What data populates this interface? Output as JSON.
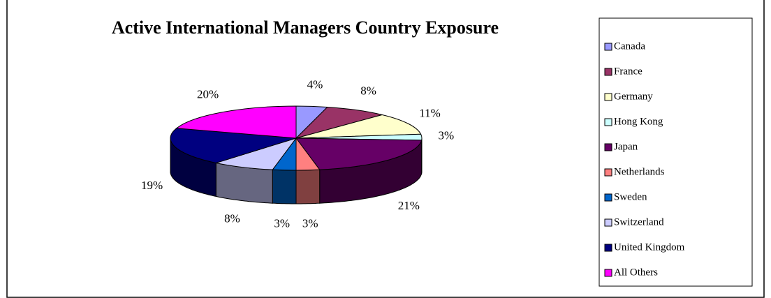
{
  "chart_data": {
    "type": "pie",
    "title": "Active International Managers Country Exposure",
    "categories": [
      "Canada",
      "France",
      "Germany",
      "Hong Kong",
      "Japan",
      "Netherlands",
      "Sweden",
      "Switzerland",
      "United Kingdom",
      "All Others"
    ],
    "values": [
      4,
      8,
      11,
      3,
      21,
      3,
      3,
      8,
      19,
      20
    ],
    "value_labels": [
      "4%",
      "8%",
      "11%",
      "3%",
      "21%",
      "3%",
      "3%",
      "8%",
      "19%",
      "20%"
    ],
    "colors": [
      "#9999ff",
      "#993366",
      "#ffffcc",
      "#ccffff",
      "#660066",
      "#ff8080",
      "#0066cc",
      "#ccccff",
      "#000080",
      "#ff00ff"
    ],
    "legend": "right"
  }
}
